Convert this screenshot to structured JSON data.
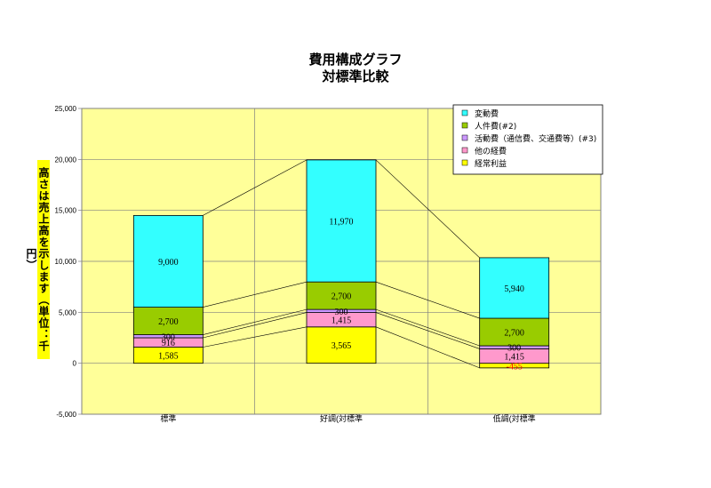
{
  "chart_data": {
    "type": "bar",
    "stacked": true,
    "title": "費用構成グラフ",
    "subtitle": "対標準比較",
    "ylabel": "高さは売上高を示します（単位：千円）",
    "ylim": [
      -5000,
      25000
    ],
    "yticks": [
      "-5,000",
      "0",
      "5,000",
      "10,000",
      "15,000",
      "20,000",
      "25,000"
    ],
    "categories": [
      "標準",
      "好調(対標準",
      "低調(対標準"
    ],
    "series": [
      {
        "name": "経常利益",
        "color": "#ffff00",
        "values": [
          1585,
          3565,
          -455
        ],
        "labels": [
          "1,585",
          "3,565",
          "-455"
        ]
      },
      {
        "name": "他の経費",
        "color": "#ff99cc",
        "values": [
          916,
          1415,
          1415
        ],
        "labels": [
          "916",
          "1,415",
          "1,415"
        ]
      },
      {
        "name": "活動費（通信費、交通費等）(#3)",
        "color": "#cc99ff",
        "values": [
          300,
          300,
          300
        ],
        "labels": [
          "300",
          "300",
          "300"
        ]
      },
      {
        "name": "人件費(#2)",
        "color": "#99cc00",
        "values": [
          2700,
          2700,
          2700
        ],
        "labels": [
          "2,700",
          "2,700",
          "2,700"
        ]
      },
      {
        "name": "変動費",
        "color": "#33ffff",
        "values": [
          9000,
          11970,
          5940
        ],
        "labels": [
          "9,000",
          "11,970",
          "5,940"
        ]
      }
    ],
    "legend_order": [
      "変動費",
      "人件費(#2)",
      "活動費（通信費、交通費等）(#3)",
      "他の経費",
      "経常利益"
    ],
    "legend_position": "top-right",
    "plot_background": "#ffff99",
    "negative_label_color": "#ff0000",
    "grid": true
  }
}
